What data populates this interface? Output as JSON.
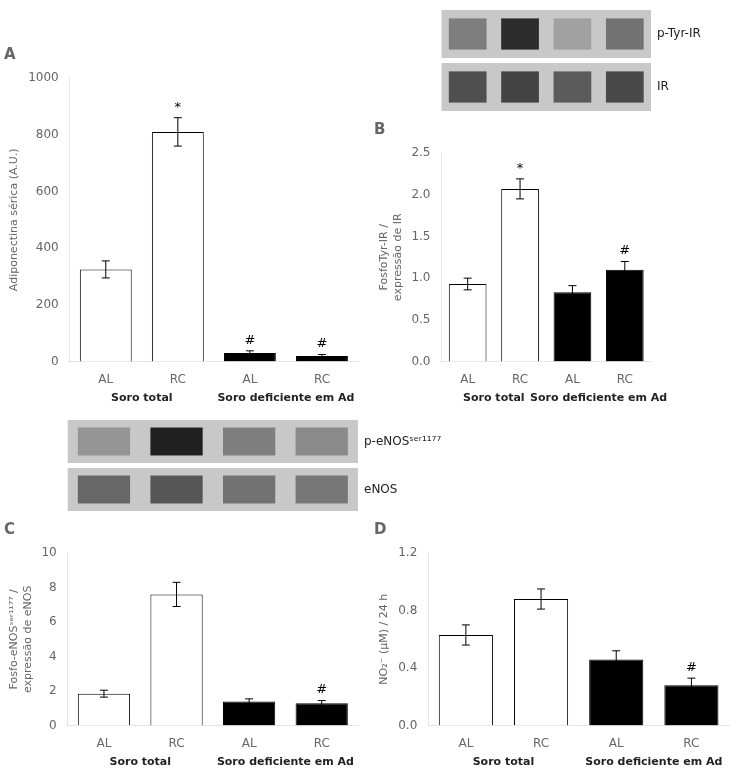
{
  "chart_data": [
    {
      "type": "bar",
      "title": "A",
      "categories": [
        "AL",
        "RC",
        "AL",
        "RC"
      ],
      "values": [
        325,
        810,
        30,
        20
      ],
      "errors": [
        30,
        50,
        8,
        5
      ],
      "colors": [
        "white",
        "white",
        "black",
        "black"
      ],
      "ylabel": "Adiponectina sérica (A.U.)",
      "ylim": [
        0,
        1000
      ],
      "yticks": [
        0,
        200,
        400,
        600,
        800,
        1000
      ],
      "group_labels": [
        "Soro total",
        "Soro deficiente em Ad"
      ],
      "annotations": [
        null,
        "*",
        "#",
        "#"
      ],
      "grid": false
    },
    {
      "type": "heatmap",
      "title": "p-Tyr-IR",
      "cells": [
        [
          0.55,
          0.9,
          0.4,
          0.6
        ]
      ],
      "zlim": [
        0,
        1
      ],
      "tick_labels": false
    },
    {
      "type": "heatmap",
      "title": "IR",
      "cells": [
        [
          0.75,
          0.8,
          0.7,
          0.78
        ]
      ],
      "zlim": [
        0,
        1
      ],
      "tick_labels": false
    },
    {
      "type": "bar",
      "title": "B",
      "categories": [
        "AL",
        "RC",
        "AL",
        "RC"
      ],
      "values": [
        0.93,
        2.07,
        0.83,
        1.1
      ],
      "errors": [
        0.07,
        0.12,
        0.08,
        0.1
      ],
      "colors": [
        "white",
        "white",
        "black",
        "black"
      ],
      "ylabel": "FosfoTyr-IR /\nexpressão de IR",
      "ylim": [
        0,
        2.5
      ],
      "yticks": [
        {
          "value": 0,
          "label": "0.0"
        },
        0.5,
        {
          "value": 1,
          "label": "1.0"
        },
        1.5,
        {
          "value": 2,
          "label": "2.0"
        },
        2.5
      ],
      "group_labels": [
        "Soro total",
        "Soro deficiente em Ad"
      ],
      "annotations": [
        null,
        "*",
        null,
        "#"
      ],
      "grid": false
    },
    {
      "type": "heatmap",
      "title": "p-eNOSˢᵉʳ¹¹⁷⁷",
      "cells": [
        [
          0.45,
          0.95,
          0.55,
          0.5
        ]
      ],
      "zlim": [
        0,
        1
      ],
      "tick_labels": false
    },
    {
      "type": "heatmap",
      "title": "eNOS",
      "cells": [
        [
          0.65,
          0.72,
          0.6,
          0.58
        ]
      ],
      "zlim": [
        0,
        1
      ],
      "tick_labels": false
    },
    {
      "type": "bar",
      "title": "C",
      "categories": [
        "AL",
        "RC",
        "AL",
        "RC"
      ],
      "values": [
        1.85,
        7.6,
        1.4,
        1.3
      ],
      "errors": [
        0.2,
        0.7,
        0.15,
        0.15
      ],
      "colors": [
        "white",
        "white",
        "black",
        "black"
      ],
      "ylabel": "Fosfo-eNOSˢᵉʳ¹¹⁷⁷ /\nexpressão de eNOS",
      "ylim": [
        0,
        10
      ],
      "yticks": [
        0,
        2,
        4,
        6,
        8,
        10
      ],
      "group_labels": [
        "Soro total",
        "Soro deficiente em Ad"
      ],
      "annotations": [
        null,
        null,
        null,
        "#"
      ],
      "grid": false
    },
    {
      "type": "bar",
      "title": "D",
      "categories": [
        "AL",
        "RC",
        "AL",
        "RC"
      ],
      "values": [
        0.63,
        0.88,
        0.46,
        0.28
      ],
      "errors": [
        0.07,
        0.07,
        0.06,
        0.05
      ],
      "colors": [
        "white",
        "white",
        "black",
        "black"
      ],
      "ylabel": "NO₂⁻ (μM) / 24 h",
      "ylim": [
        0,
        1.2
      ],
      "yticks": [
        {
          "value": 0,
          "label": "0.0"
        },
        0.4,
        0.8,
        1.2
      ],
      "group_labels": [
        "Soro total",
        "Soro deficiente em Ad"
      ],
      "annotations": [
        null,
        null,
        null,
        "#"
      ],
      "grid": false
    }
  ]
}
